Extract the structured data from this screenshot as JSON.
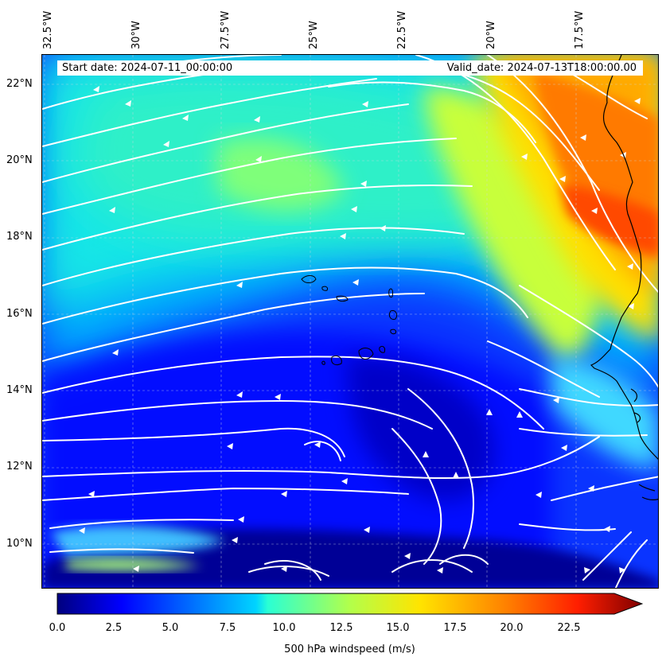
{
  "header": {
    "start_date": "Start date: 2024-07-11_00:00:00",
    "valid_date": "Valid_date: 2024-07-13T18:00:00.00"
  },
  "axes": {
    "lon_labels": [
      "32.5°W",
      "30°W",
      "27.5°W",
      "25°W",
      "22.5°W",
      "20°W",
      "17.5°W"
    ],
    "lat_labels": [
      "22°N",
      "20°N",
      "18°N",
      "16°N",
      "14°N",
      "12°N",
      "10°N"
    ],
    "grid": true
  },
  "colorbar": {
    "title": "500 hPa windspeed (m/s)",
    "tick_labels": [
      "0.0",
      "2.5",
      "5.0",
      "7.5",
      "10.0",
      "12.5",
      "15.0",
      "17.5",
      "20.0",
      "22.5"
    ],
    "min": 0,
    "max": 25,
    "extend": "max",
    "colormap": "jet"
  },
  "map": {
    "variable": "500 hPa windspeed",
    "units": "m/s",
    "lon_range": [
      -33,
      -16
    ],
    "lat_range": [
      8.9,
      22.8
    ],
    "streamline_color": "#ffffff",
    "coastline_color": "#000000"
  }
}
